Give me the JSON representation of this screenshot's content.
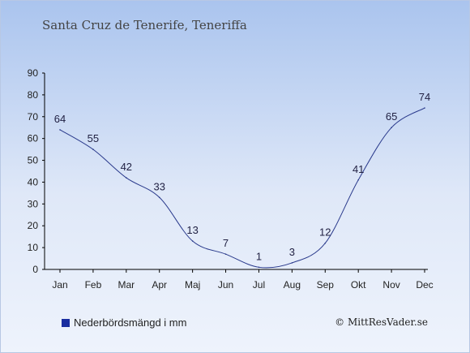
{
  "header": {
    "title": "Santa Cruz de Tenerife, Teneriffa"
  },
  "legend": {
    "label": "Nederbördsmängd i mm"
  },
  "credit": {
    "text": "© MittResVader.se"
  },
  "colors": {
    "line": "#2a3a8c",
    "axis": "#000000",
    "swatch": "#1a2ea0"
  },
  "chart_data": {
    "type": "line",
    "categories": [
      "Jan",
      "Feb",
      "Mar",
      "Apr",
      "Maj",
      "Jun",
      "Jul",
      "Aug",
      "Sep",
      "Okt",
      "Nov",
      "Dec"
    ],
    "series": [
      {
        "name": "Nederbördsmängd i mm",
        "values": [
          64,
          55,
          42,
          33,
          13,
          7,
          1,
          3,
          12,
          41,
          65,
          74
        ]
      }
    ],
    "ylim": [
      0,
      90
    ],
    "yticks": [
      0,
      10,
      20,
      30,
      40,
      50,
      60,
      70,
      80,
      90
    ],
    "grid": false,
    "legend_position": "bottom-left"
  }
}
